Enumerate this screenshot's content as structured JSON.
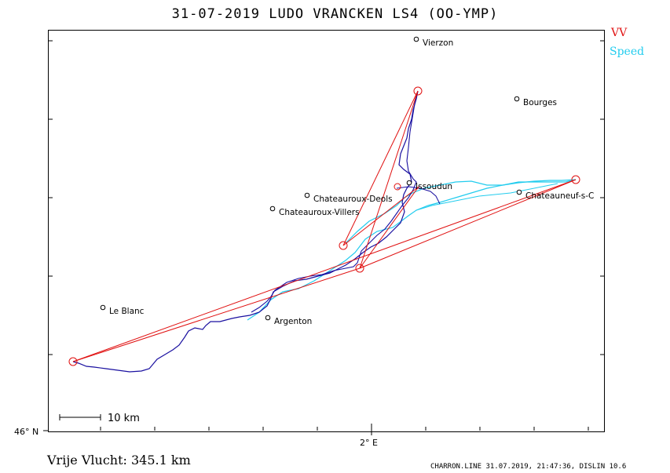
{
  "header": {
    "title": "31-07-2019    LUDO VRANCKEN    LS4 (OO-YMP)"
  },
  "legend": {
    "vv_label": "VV",
    "vv_color": "#e01010",
    "speed_label": "Speed",
    "speed_color": "#22ccee",
    "track_color": "#1a10a0"
  },
  "axes": {
    "lat_label": "46° N",
    "lon_label": "2° E"
  },
  "towns": [
    {
      "name": "Vierzon"
    },
    {
      "name": "Bourges"
    },
    {
      "name": "Issoudun"
    },
    {
      "name": "Chateauroux-Deols"
    },
    {
      "name": "Chateauroux-Villers"
    },
    {
      "name": "Chateauneuf-s-C"
    },
    {
      "name": "Le Blanc"
    },
    {
      "name": "Argenton"
    }
  ],
  "scale": {
    "label": "10  km"
  },
  "result": {
    "label": "Vrije Vlucht:  345.1 km",
    "distance_km": 345.1
  },
  "footer": {
    "text": "CHARRON.LINE 31.07.2019, 21:47:36, DISLIN 10.6"
  }
}
